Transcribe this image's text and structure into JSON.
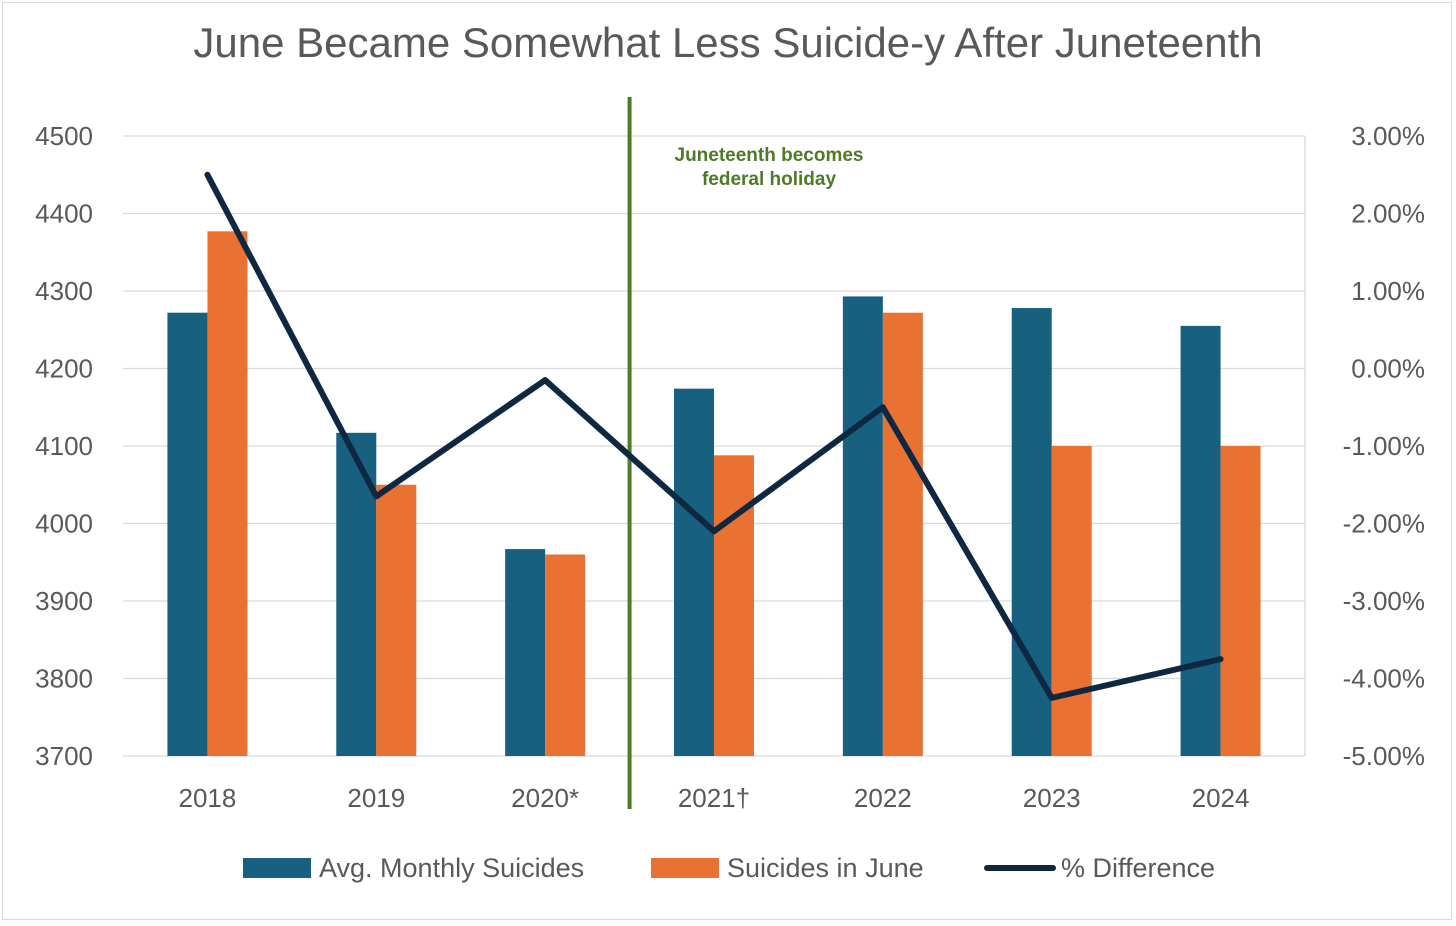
{
  "chart_data": {
    "type": "bar",
    "title": "June Became Somewhat Less Suicide-y After Juneteenth",
    "categories": [
      "2018",
      "2019",
      "2020*",
      "2021†",
      "2022",
      "2023",
      "2024"
    ],
    "series": [
      {
        "name": "Avg. Monthly Suicides",
        "type": "bar",
        "axis": "left",
        "color": "#17607f",
        "values": [
          4272,
          4117,
          3967,
          4174,
          4293,
          4278,
          4255
        ]
      },
      {
        "name": "Suicides in June",
        "type": "bar",
        "axis": "left",
        "color": "#e97132",
        "values": [
          4377,
          4050,
          3960,
          4088,
          4272,
          4100,
          4100
        ]
      },
      {
        "name": "% Difference",
        "type": "line",
        "axis": "right",
        "color": "#0e2841",
        "values": [
          2.5,
          -1.65,
          -0.15,
          -2.1,
          -0.5,
          -4.25,
          -3.75
        ]
      }
    ],
    "left_axis": {
      "min": 3700,
      "max": 4500,
      "ticks": [
        "4500",
        "4400",
        "4300",
        "4200",
        "4100",
        "4000",
        "3900",
        "3800",
        "3700"
      ]
    },
    "right_axis": {
      "min": -5,
      "max": 3,
      "ticks": [
        "3.00%",
        "2.00%",
        "1.00%",
        "0.00%",
        "-1.00%",
        "-2.00%",
        "-3.00%",
        "-4.00%",
        "-5.00%"
      ]
    },
    "annotation": {
      "lines": [
        "Juneteenth becomes",
        "federal holiday"
      ],
      "position": "between 2020* and 2021†",
      "color": "#4f7a28"
    },
    "legend": {
      "placement": "bottom"
    },
    "grid": true
  }
}
